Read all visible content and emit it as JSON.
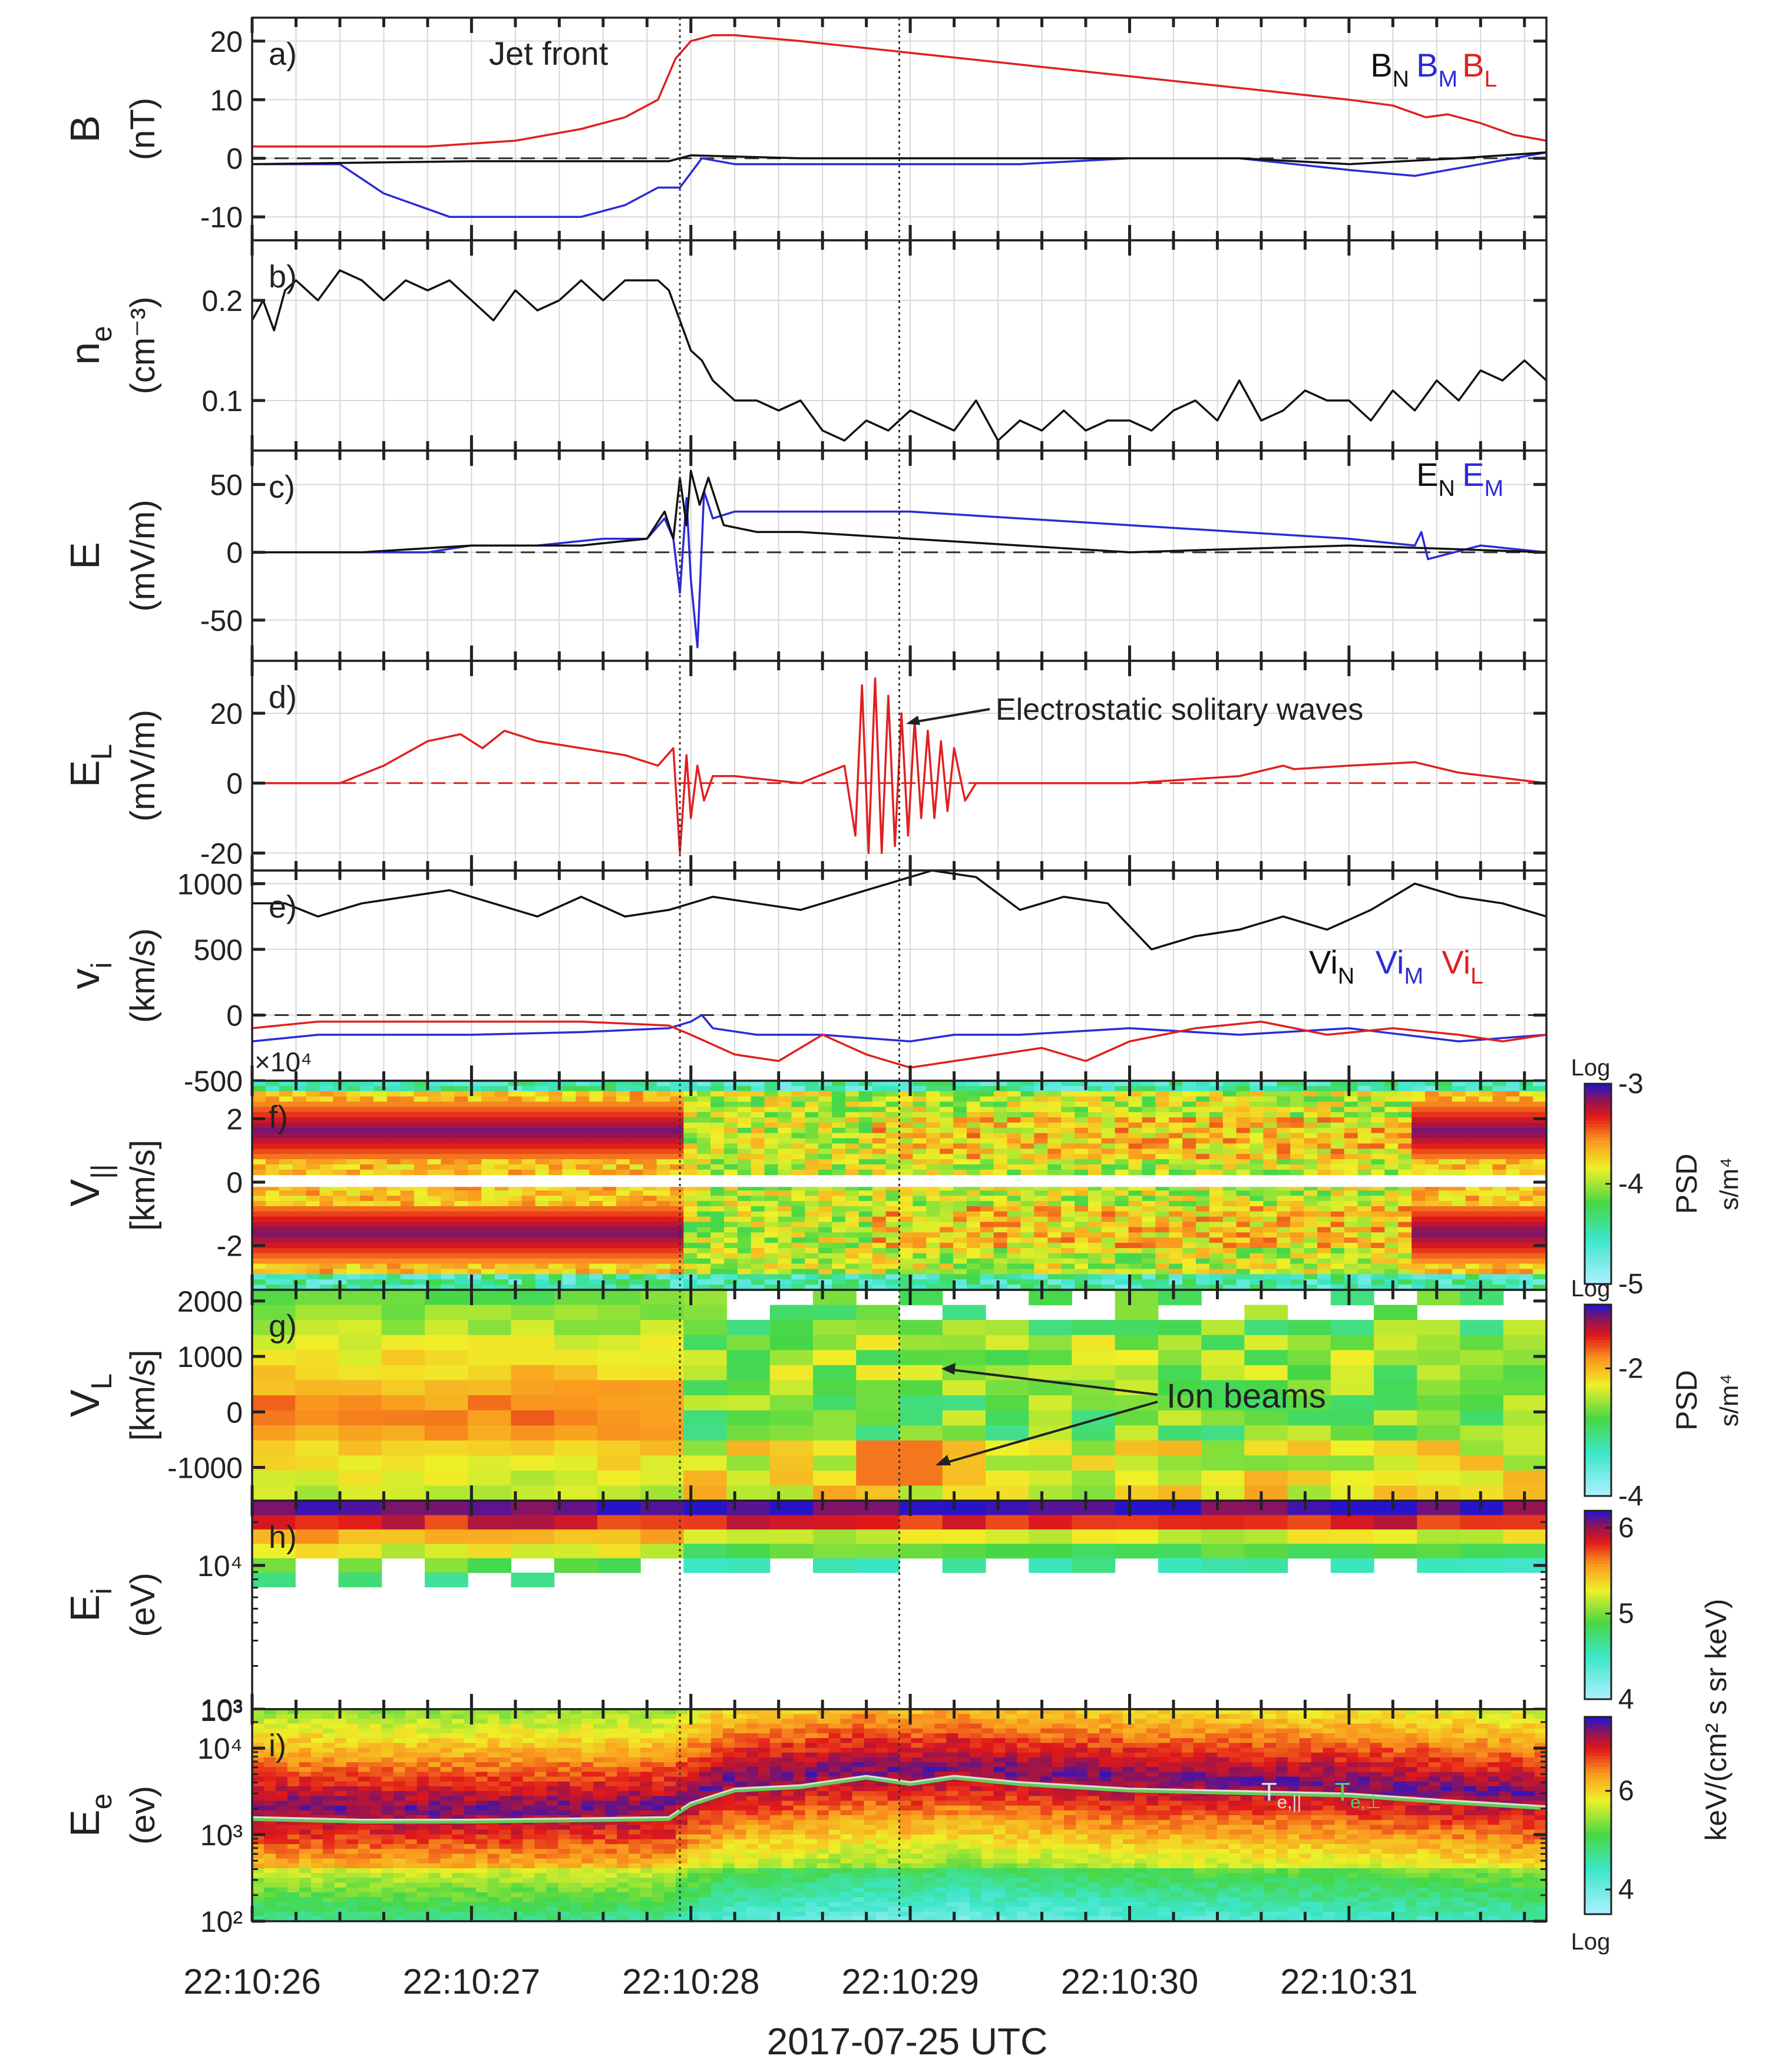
{
  "figure": {
    "xlabel": "2017-07-25 UTC",
    "x_ticklabels": [
      "22:10:26",
      "22:10:27",
      "22:10:28",
      "22:10:29",
      "22:10:30",
      "22:10:31"
    ],
    "x_range_seconds": [
      26.0,
      31.9
    ],
    "markers": [
      {
        "t": 27.95,
        "style": "dotted"
      },
      {
        "t": 28.95,
        "style": "dotted"
      }
    ]
  },
  "colors": {
    "black": "#111111",
    "blue": "#2b2bd6",
    "red": "#e02020",
    "green": "#66cc55"
  },
  "chart_data": [
    {
      "id": "a",
      "type": "line",
      "panel_label": "a)",
      "ylabel": "B",
      "yunit": "(nT)",
      "ylim": [
        -14,
        24
      ],
      "yticks": [
        "20",
        "10",
        "0",
        "-10"
      ],
      "ytick_values": [
        20,
        10,
        0,
        -10
      ],
      "annotation": "Jet front",
      "legend": [
        {
          "base": "B",
          "sub": "N",
          "color": "#111111"
        },
        {
          "base": "B",
          "sub": "M",
          "color": "#2b2bd6"
        },
        {
          "base": "B",
          "sub": "L",
          "color": "#e02020"
        }
      ],
      "zero_line": true,
      "series": [
        {
          "name": "BL",
          "color": "#e02020",
          "t": [
            26.0,
            26.3,
            26.8,
            27.2,
            27.5,
            27.7,
            27.85,
            27.93,
            28.0,
            28.1,
            28.2,
            28.5,
            29.0,
            29.5,
            30.0,
            30.5,
            31.0,
            31.2,
            31.35,
            31.45,
            31.6,
            31.75,
            31.9
          ],
          "y": [
            2,
            2,
            2,
            3,
            5,
            7,
            10,
            17,
            20,
            21,
            21,
            20,
            18,
            16,
            14,
            12,
            10,
            9,
            7,
            7.5,
            6,
            4,
            3
          ]
        },
        {
          "name": "BM",
          "color": "#2b2bd6",
          "t": [
            26.0,
            26.4,
            26.6,
            26.9,
            27.2,
            27.5,
            27.7,
            27.85,
            27.95,
            28.05,
            28.2,
            28.5,
            29.0,
            29.5,
            30.0,
            30.5,
            31.0,
            31.3,
            31.6,
            31.9
          ],
          "y": [
            -1,
            -1,
            -6,
            -10,
            -10,
            -10,
            -8,
            -5,
            -5,
            0,
            -1,
            -1,
            -1,
            -1,
            0,
            0,
            -2,
            -3,
            -1,
            1
          ]
        },
        {
          "name": "BN",
          "color": "#111111",
          "t": [
            26.0,
            27.0,
            27.9,
            28.0,
            28.5,
            29.0,
            30.0,
            30.5,
            31.0,
            31.5,
            31.9
          ],
          "y": [
            -1,
            -0.5,
            -0.5,
            0.5,
            0,
            0,
            0,
            0,
            -1,
            0,
            1
          ]
        }
      ]
    },
    {
      "id": "b",
      "type": "line",
      "panel_label": "b)",
      "ylabel": "n",
      "ylabel_sub": "e",
      "yunit": "(cm⁻³)",
      "ylim": [
        0.05,
        0.26
      ],
      "yticks": [
        "0.2",
        "0.1"
      ],
      "ytick_values": [
        0.2,
        0.1
      ],
      "series": [
        {
          "name": "ne",
          "color": "#111111",
          "t": [
            26.0,
            26.05,
            26.1,
            26.15,
            26.2,
            26.3,
            26.4,
            26.5,
            26.6,
            26.7,
            26.8,
            26.9,
            27.0,
            27.1,
            27.2,
            27.3,
            27.4,
            27.5,
            27.6,
            27.7,
            27.8,
            27.85,
            27.9,
            27.95,
            28.0,
            28.05,
            28.1,
            28.2,
            28.3,
            28.4,
            28.5,
            28.6,
            28.7,
            28.8,
            28.9,
            29.0,
            29.1,
            29.2,
            29.3,
            29.4,
            29.5,
            29.6,
            29.7,
            29.8,
            29.9,
            30.0,
            30.1,
            30.2,
            30.3,
            30.4,
            30.5,
            30.6,
            30.7,
            30.8,
            30.9,
            31.0,
            31.1,
            31.2,
            31.3,
            31.4,
            31.5,
            31.6,
            31.7,
            31.8,
            31.9
          ],
          "y": [
            0.18,
            0.2,
            0.17,
            0.21,
            0.22,
            0.2,
            0.23,
            0.22,
            0.2,
            0.22,
            0.21,
            0.22,
            0.2,
            0.18,
            0.21,
            0.19,
            0.2,
            0.22,
            0.2,
            0.22,
            0.22,
            0.22,
            0.21,
            0.18,
            0.15,
            0.14,
            0.12,
            0.1,
            0.1,
            0.09,
            0.1,
            0.07,
            0.06,
            0.08,
            0.07,
            0.09,
            0.08,
            0.07,
            0.1,
            0.06,
            0.08,
            0.07,
            0.09,
            0.07,
            0.08,
            0.08,
            0.07,
            0.09,
            0.1,
            0.08,
            0.12,
            0.08,
            0.09,
            0.11,
            0.1,
            0.1,
            0.08,
            0.11,
            0.09,
            0.12,
            0.1,
            0.13,
            0.12,
            0.14,
            0.12
          ]
        }
      ]
    },
    {
      "id": "c",
      "type": "line",
      "panel_label": "c)",
      "ylabel": "E",
      "yunit": "(mV/m)",
      "ylim": [
        -80,
        75
      ],
      "yticks": [
        "50",
        "0",
        "-50"
      ],
      "ytick_values": [
        50,
        0,
        -50
      ],
      "legend": [
        {
          "base": "E",
          "sub": "N",
          "color": "#111111"
        },
        {
          "base": "E",
          "sub": "M",
          "color": "#2b2bd6"
        }
      ],
      "zero_line": true,
      "series": [
        {
          "name": "EM",
          "color": "#2b2bd6",
          "t": [
            26.0,
            26.5,
            26.8,
            27.0,
            27.3,
            27.6,
            27.8,
            27.88,
            27.92,
            27.95,
            27.98,
            28.0,
            28.03,
            28.06,
            28.1,
            28.2,
            28.5,
            29.0,
            29.5,
            30.0,
            30.5,
            31.0,
            31.3,
            31.33,
            31.36,
            31.6,
            31.9
          ],
          "y": [
            0,
            0,
            0,
            5,
            5,
            10,
            10,
            25,
            10,
            -30,
            40,
            -20,
            -70,
            45,
            25,
            30,
            30,
            30,
            25,
            20,
            15,
            10,
            5,
            15,
            -5,
            5,
            0
          ]
        },
        {
          "name": "EN",
          "color": "#111111",
          "t": [
            26.0,
            26.5,
            27.0,
            27.5,
            27.8,
            27.88,
            27.92,
            27.95,
            27.98,
            28.0,
            28.04,
            28.08,
            28.15,
            28.3,
            28.5,
            29.0,
            29.5,
            30.0,
            31.0,
            31.9
          ],
          "y": [
            0,
            0,
            5,
            5,
            10,
            30,
            10,
            55,
            20,
            60,
            35,
            55,
            20,
            15,
            15,
            10,
            5,
            0,
            5,
            0
          ]
        }
      ]
    },
    {
      "id": "d",
      "type": "line",
      "panel_label": "d)",
      "ylabel": "E",
      "ylabel_sub": "L",
      "yunit": "(mV/m)",
      "ylim": [
        -25,
        35
      ],
      "yticks": [
        "20",
        "0",
        "-20"
      ],
      "ytick_values": [
        20,
        0,
        -20
      ],
      "annotation": "Electrostatic solitary waves",
      "zero_line": true,
      "zero_line_color": "#e02020",
      "series": [
        {
          "name": "EL",
          "color": "#e02020",
          "t": [
            26.0,
            26.4,
            26.6,
            26.8,
            26.95,
            27.05,
            27.15,
            27.3,
            27.5,
            27.7,
            27.85,
            27.92,
            27.95,
            27.98,
            28.0,
            28.03,
            28.06,
            28.1,
            28.2,
            28.5,
            28.7,
            28.75,
            28.78,
            28.81,
            28.84,
            28.87,
            28.9,
            28.93,
            28.96,
            28.99,
            29.02,
            29.05,
            29.08,
            29.11,
            29.14,
            29.17,
            29.2,
            29.25,
            29.3,
            29.5,
            30.0,
            30.5,
            30.7,
            30.75,
            31.0,
            31.3,
            31.5,
            31.9
          ],
          "y": [
            0,
            0,
            5,
            12,
            14,
            10,
            15,
            12,
            10,
            8,
            5,
            10,
            -20,
            8,
            -10,
            5,
            -5,
            2,
            2,
            0,
            5,
            -15,
            28,
            -20,
            30,
            -20,
            25,
            -18,
            20,
            -15,
            18,
            -10,
            15,
            -10,
            12,
            -8,
            10,
            -5,
            0,
            0,
            0,
            2,
            5,
            4,
            5,
            6,
            3,
            0
          ]
        }
      ]
    },
    {
      "id": "e",
      "type": "line",
      "panel_label": "e)",
      "ylabel": "v",
      "ylabel_sub": "i",
      "yunit": "(km/s)",
      "ylim": [
        -500,
        1100
      ],
      "yticks": [
        "1000",
        "500",
        "0",
        "-500"
      ],
      "ytick_values": [
        1000,
        500,
        0,
        -500
      ],
      "legend": [
        {
          "base": "Vi",
          "sub": "N",
          "color": "#111111"
        },
        {
          "base": "Vi",
          "sub": "M",
          "color": "#2b2bd6"
        },
        {
          "base": "Vi",
          "sub": "L",
          "color": "#e02020"
        }
      ],
      "zero_line": true,
      "series": [
        {
          "name": "ViN",
          "color": "#111111",
          "t": [
            26.0,
            26.15,
            26.3,
            26.5,
            26.7,
            26.9,
            27.1,
            27.3,
            27.5,
            27.7,
            27.9,
            28.1,
            28.3,
            28.5,
            28.7,
            28.9,
            29.1,
            29.3,
            29.5,
            29.7,
            29.9,
            30.1,
            30.3,
            30.5,
            30.7,
            30.9,
            31.1,
            31.3,
            31.5,
            31.7,
            31.9
          ],
          "y": [
            850,
            850,
            750,
            850,
            900,
            950,
            850,
            750,
            900,
            750,
            800,
            900,
            850,
            800,
            900,
            1000,
            1100,
            1050,
            800,
            900,
            850,
            500,
            600,
            650,
            750,
            650,
            800,
            1000,
            900,
            850,
            750
          ]
        },
        {
          "name": "ViM",
          "color": "#2b2bd6",
          "t": [
            26.0,
            26.3,
            26.6,
            27.0,
            27.5,
            27.9,
            28.0,
            28.05,
            28.1,
            28.3,
            28.6,
            29.0,
            29.2,
            29.5,
            30.0,
            30.5,
            31.0,
            31.5,
            31.9
          ],
          "y": [
            -200,
            -150,
            -150,
            -150,
            -130,
            -100,
            -50,
            0,
            -100,
            -150,
            -150,
            -200,
            -150,
            -150,
            -100,
            -150,
            -100,
            -200,
            -150
          ]
        },
        {
          "name": "ViL",
          "color": "#e02020",
          "t": [
            26.0,
            26.3,
            26.6,
            27.0,
            27.5,
            27.9,
            28.0,
            28.2,
            28.4,
            28.6,
            28.8,
            29.0,
            29.2,
            29.4,
            29.6,
            29.8,
            30.0,
            30.3,
            30.6,
            30.9,
            31.2,
            31.5,
            31.7,
            31.9
          ],
          "y": [
            -100,
            -50,
            -50,
            -50,
            -50,
            -80,
            -150,
            -300,
            -350,
            -150,
            -300,
            -400,
            -350,
            -300,
            -250,
            -350,
            -200,
            -100,
            -50,
            -150,
            -100,
            -150,
            -200,
            -150
          ]
        }
      ]
    },
    {
      "id": "f",
      "type": "heatmap",
      "panel_label": "f)",
      "ylabel": "V",
      "ylabel_sub": "||",
      "yunit": "[km/s]",
      "ylim": [
        -3.4,
        3.2
      ],
      "yticks": [
        "2",
        "0",
        "-2"
      ],
      "ytick_values": [
        2,
        0,
        -2
      ],
      "y_exponent": "×10⁴",
      "gap": [
        -0.15,
        0.15
      ],
      "colorbar": {
        "label": "PSD",
        "unit": "s/m⁴",
        "scale": "Log",
        "ticks": [
          "-3",
          "-4",
          "-5"
        ],
        "tick_values": [
          -3,
          -4,
          -5
        ],
        "range": [
          -5,
          -3
        ]
      },
      "description": "electron velocity distribution; strong counter-streaming population (|V|>1) before jet front, weaker and diffuse after",
      "t_edges": [
        26.0,
        27.9,
        28.0,
        30.9,
        31.9
      ],
      "level_before": -3.1,
      "level_after": -4.1
    },
    {
      "id": "g",
      "type": "heatmap",
      "panel_label": "g)",
      "ylabel": "V",
      "ylabel_sub": "L",
      "yunit": "[km/s]",
      "ylim": [
        -1600,
        2200
      ],
      "yticks": [
        "2000",
        "1000",
        "0",
        "-1000"
      ],
      "ytick_values": [
        2000,
        1000,
        0,
        -1000
      ],
      "annotation": "Ion beams",
      "colorbar": {
        "label": "PSD",
        "unit": "s/m⁴",
        "scale": "Log",
        "ticks": [
          "-2",
          "-4"
        ],
        "tick_values": [
          -2,
          -4
        ],
        "range": [
          -4,
          -1
        ]
      }
    },
    {
      "id": "h",
      "type": "heatmap",
      "panel_label": "h)",
      "ylabel": "E",
      "ylabel_sub": "i",
      "yunit": "(eV)",
      "ylim_log": [
        3,
        4.45
      ],
      "yticks": [
        "10⁴",
        "10³"
      ],
      "ytick_values": [
        4,
        3
      ],
      "colorbar": {
        "label": "keV/(cm² s sr keV)",
        "ticks": [
          "6",
          "5",
          "4"
        ],
        "tick_values": [
          6,
          5,
          4
        ],
        "range": [
          4,
          6.2
        ]
      }
    },
    {
      "id": "i",
      "type": "heatmap",
      "panel_label": "i)",
      "ylabel": "E",
      "ylabel_sub": "e",
      "yunit": "(ev)",
      "ylim_log": [
        2,
        4.45
      ],
      "yticks": [
        "10⁴",
        "10³",
        "10²"
      ],
      "ytick_values": [
        4,
        3,
        2
      ],
      "top_tick": "10³",
      "legend": [
        {
          "base": "T",
          "sub": "e,||",
          "color": "#dddddd"
        },
        {
          "base": "T",
          "sub": "e,⊥",
          "color": "#66cc55"
        }
      ],
      "colorbar": {
        "label": "keV/(cm² s sr keV)",
        "scale": "Log",
        "ticks": [
          "6",
          "4"
        ],
        "tick_values": [
          6,
          4
        ],
        "range": [
          3.5,
          7.5
        ]
      },
      "temperature": {
        "t": [
          26.0,
          26.5,
          27.0,
          27.5,
          27.9,
          28.0,
          28.2,
          28.5,
          28.8,
          29.0,
          29.2,
          29.5,
          30.0,
          30.5,
          31.0,
          31.5,
          31.9
        ],
        "y_eV": [
          1500,
          1400,
          1400,
          1450,
          1500,
          2200,
          3200,
          3500,
          4500,
          3800,
          4500,
          3800,
          3200,
          3000,
          2800,
          2300,
          2000
        ]
      }
    }
  ]
}
